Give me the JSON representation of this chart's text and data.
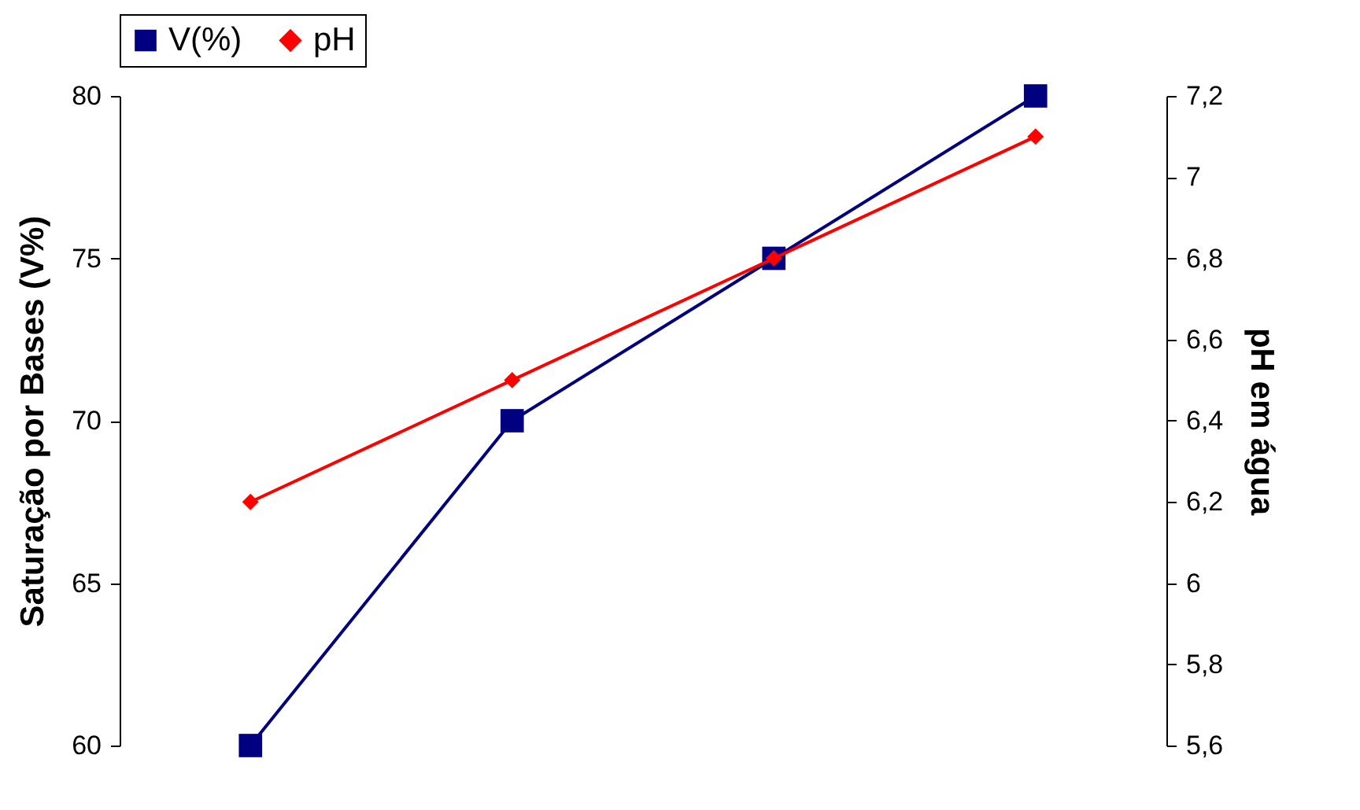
{
  "chart_data": {
    "type": "line",
    "categories": [
      null,
      null,
      null,
      null
    ],
    "ylabel": "Saturação por Bases (V%)",
    "y2label": "pH em água",
    "series": [
      {
        "name": "V(%)",
        "color": "#000080",
        "marker": "square",
        "values": [
          60,
          70,
          75,
          80
        ]
      },
      {
        "name": "pH",
        "color": "#ff0000",
        "marker": "diamond",
        "axis": "y2",
        "values": [
          6.2,
          6.5,
          6.8,
          7.1
        ]
      }
    ],
    "ylim": [
      60,
      80
    ],
    "yticks": [
      60,
      65,
      70,
      75,
      80
    ],
    "y2lim": [
      5.6,
      7.2
    ],
    "y2ticks": [
      {
        "value": 5.6,
        "label": "5,6"
      },
      {
        "value": 5.8,
        "label": "5,8"
      },
      {
        "value": 6,
        "label": "6"
      },
      {
        "value": 6.2,
        "label": "6,2"
      },
      {
        "value": 6.4,
        "label": "6,4"
      },
      {
        "value": 6.6,
        "label": "6,6"
      },
      {
        "value": 6.8,
        "label": "6,8"
      },
      {
        "value": 7,
        "label": "7"
      },
      {
        "value": 7.2,
        "label": "7,2"
      }
    ],
    "grid": false,
    "legend": "top",
    "line_style": "solid"
  }
}
